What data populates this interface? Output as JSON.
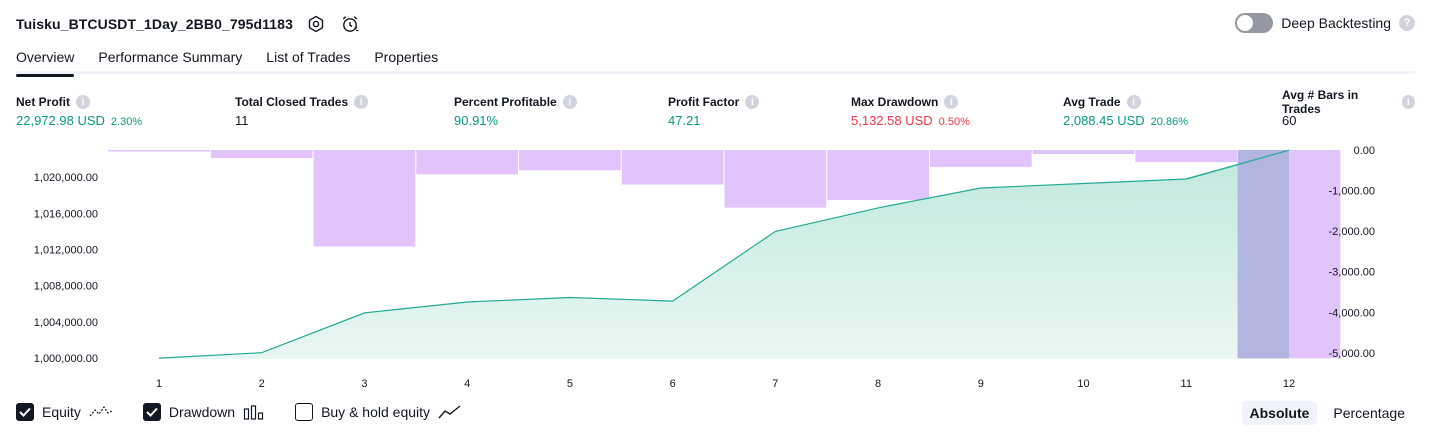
{
  "header": {
    "title": "Tuisku_BTCUSDT_1Day_2BB0_795d1183",
    "deep_backtesting_label": "Deep Backtesting",
    "deep_backtesting_enabled": false,
    "help_glyph": "?"
  },
  "tabs": [
    {
      "label": "Overview",
      "active": true
    },
    {
      "label": "Performance Summary",
      "active": false
    },
    {
      "label": "List of Trades",
      "active": false
    },
    {
      "label": "Properties",
      "active": false
    }
  ],
  "stats": {
    "net_profit": {
      "label": "Net Profit",
      "value": "22,972.98 USD",
      "pct": "2.30%"
    },
    "total_closed_trades": {
      "label": "Total Closed Trades",
      "value": "11"
    },
    "percent_profitable": {
      "label": "Percent Profitable",
      "value": "90.91%"
    },
    "profit_factor": {
      "label": "Profit Factor",
      "value": "47.21"
    },
    "max_drawdown": {
      "label": "Max Drawdown",
      "value": "5,132.58 USD",
      "pct": "0.50%"
    },
    "avg_trade": {
      "label": "Avg Trade",
      "value": "2,088.45 USD",
      "pct": "20.86%"
    },
    "avg_bars": {
      "label": "Avg # Bars in Trades",
      "value": "60"
    }
  },
  "legend": {
    "equity": {
      "label": "Equity",
      "checked": true
    },
    "drawdown": {
      "label": "Drawdown",
      "checked": true
    },
    "buy_hold": {
      "label": "Buy & hold equity",
      "checked": false
    }
  },
  "mode": {
    "absolute": "Absolute",
    "percentage": "Percentage",
    "selected": "Absolute"
  },
  "colors": {
    "equity_line": "#22ab94",
    "equity_fill": "#c6ebe2",
    "drawdown_bar": "#e1c4fb",
    "highlight_bar": "#b2b5e0",
    "positive": "#089981",
    "negative": "#f23645"
  },
  "chart_data": {
    "type": "area",
    "categories": [
      "1",
      "2",
      "3",
      "4",
      "5",
      "6",
      "7",
      "8",
      "9",
      "10",
      "11",
      "12"
    ],
    "left_axis": {
      "ticks": [
        "1,000,000.00",
        "1,004,000.00",
        "1,008,000.00",
        "1,012,000.00",
        "1,016,000.00",
        "1,020,000.00"
      ],
      "tick_values": [
        1000000,
        1004000,
        1008000,
        1012000,
        1016000,
        1020000
      ],
      "ylim": [
        999900,
        1023000
      ]
    },
    "right_axis": {
      "ticks": [
        "0.00",
        "-1,000.00",
        "-2,000.00",
        "-3,000.00",
        "-4,000.00",
        "-5,000.00"
      ],
      "tick_values": [
        0,
        -1000,
        -2000,
        -3000,
        -4000,
        -5000
      ],
      "ylim": [
        -5150,
        0
      ]
    },
    "series": [
      {
        "kind": "equity",
        "values": [
          1000000,
          1000600,
          1005000,
          1006200,
          1006700,
          1006300,
          1014000,
          1016600,
          1018800,
          1019300,
          1019800,
          1022972.98
        ]
      },
      {
        "kind": "drawdown",
        "values": [
          -30,
          -200,
          -2380,
          -600,
          -500,
          -850,
          -1420,
          -1230,
          -420,
          -100,
          -300,
          -5132.58
        ]
      }
    ],
    "highlight_bar_index": 11
  }
}
